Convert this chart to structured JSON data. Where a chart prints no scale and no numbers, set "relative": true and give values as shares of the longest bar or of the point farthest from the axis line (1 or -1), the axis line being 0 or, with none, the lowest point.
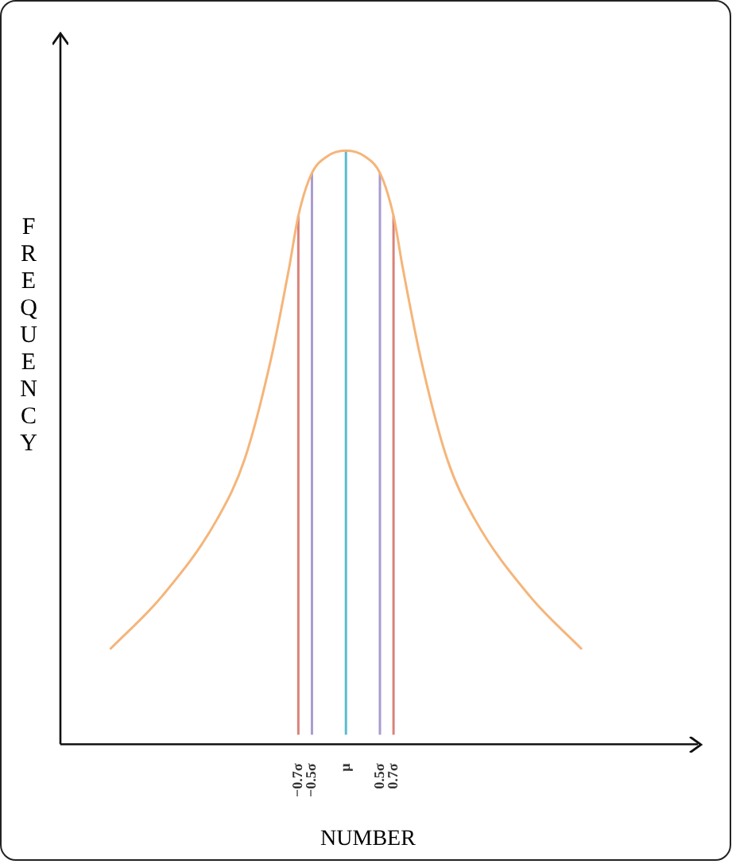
{
  "chart_data": {
    "type": "line",
    "relative": true,
    "xlabel": "NUMBER",
    "ylabel": "FREQUENCY",
    "tick_labels": "x",
    "marker": "none",
    "xlim": [
      -4.2,
      5.2
    ],
    "xticks": [
      {
        "value": -0.7,
        "label": "−0.7σ"
      },
      {
        "value": -0.5,
        "label": "−0.5σ"
      },
      {
        "value": 0,
        "label": "μ"
      },
      {
        "value": 0.5,
        "label": "0.5σ"
      },
      {
        "value": 0.7,
        "label": "0.7σ"
      }
    ],
    "x": [
      -3.47,
      -2.7,
      -1.89,
      -1.49,
      -1.1,
      -0.84,
      -0.7,
      -0.51,
      -0.28,
      0,
      0.28,
      0.51,
      0.7,
      0.84,
      1.1,
      1.49,
      1.89,
      2.7,
      3.47
    ],
    "series": [
      {
        "color": "#f5b57a",
        "values": [
          0.16,
          0.25,
          0.38,
          0.48,
          0.65,
          0.8,
          0.89,
          0.96,
          0.99,
          1,
          0.99,
          0.96,
          0.89,
          0.8,
          0.65,
          0.48,
          0.38,
          0.25,
          0.16
        ]
      }
    ],
    "ref_lines": [
      {
        "axis": "x",
        "value": -0.7,
        "color": "#d9827a"
      },
      {
        "axis": "x",
        "value": -0.5,
        "color": "#a99bd0"
      },
      {
        "axis": "x",
        "value": 0,
        "color": "#5bbccc"
      },
      {
        "axis": "x",
        "value": 0.5,
        "color": "#a99bd0"
      },
      {
        "axis": "x",
        "value": 0.7,
        "color": "#d9827a"
      }
    ]
  }
}
